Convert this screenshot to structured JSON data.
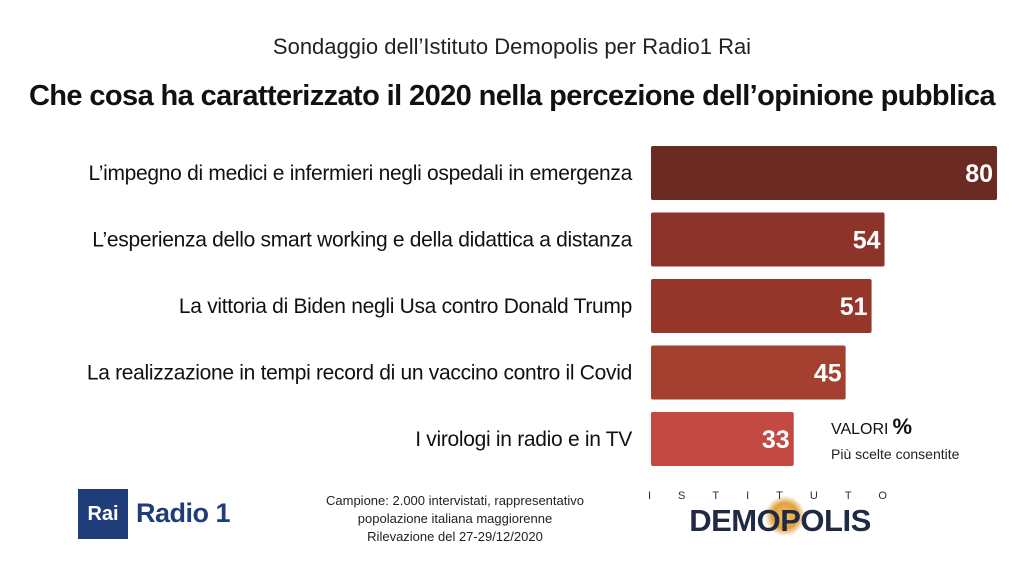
{
  "header": {
    "subtitle": "Sondaggio dell’Istituto Demopolis per Radio1 Rai",
    "title": "Che cosa ha caratterizzato il 2020 nella percezione dell’opinione pubblica"
  },
  "chart_data": {
    "type": "bar",
    "orientation": "horizontal",
    "categories": [
      "L’impegno di medici e infermieri negli ospedali in emergenza",
      "L’esperienza dello smart working e della didattica a distanza",
      "La vittoria di Biden negli Usa contro Donald Trump",
      "La realizzazione in tempi record di un vaccino contro il Covid",
      "I virologi in radio e in TV"
    ],
    "values": [
      80,
      54,
      51,
      45,
      33
    ],
    "value_labels": [
      "80",
      "54",
      "51",
      "45",
      "33"
    ],
    "bar_colors": [
      "#6b2a22",
      "#8c3429",
      "#96372b",
      "#a3402f",
      "#c24a43"
    ],
    "xlim": [
      0,
      80
    ],
    "grid": false,
    "legend": "none"
  },
  "units": {
    "label": "VALORI",
    "symbol": "%",
    "note": "Più scelte consentite"
  },
  "footer": {
    "rai_logo": {
      "mark": "Rai",
      "name": "Radio 1"
    },
    "sample": [
      "Campione: 2.000 intervistati, rappresentativo",
      "popolazione italiana maggiorenne",
      "Rilevazione del 27-29/12/2020"
    ],
    "demopolis_logo": {
      "top": "ISTITUTO",
      "name": "DEMOPOLIS"
    }
  }
}
